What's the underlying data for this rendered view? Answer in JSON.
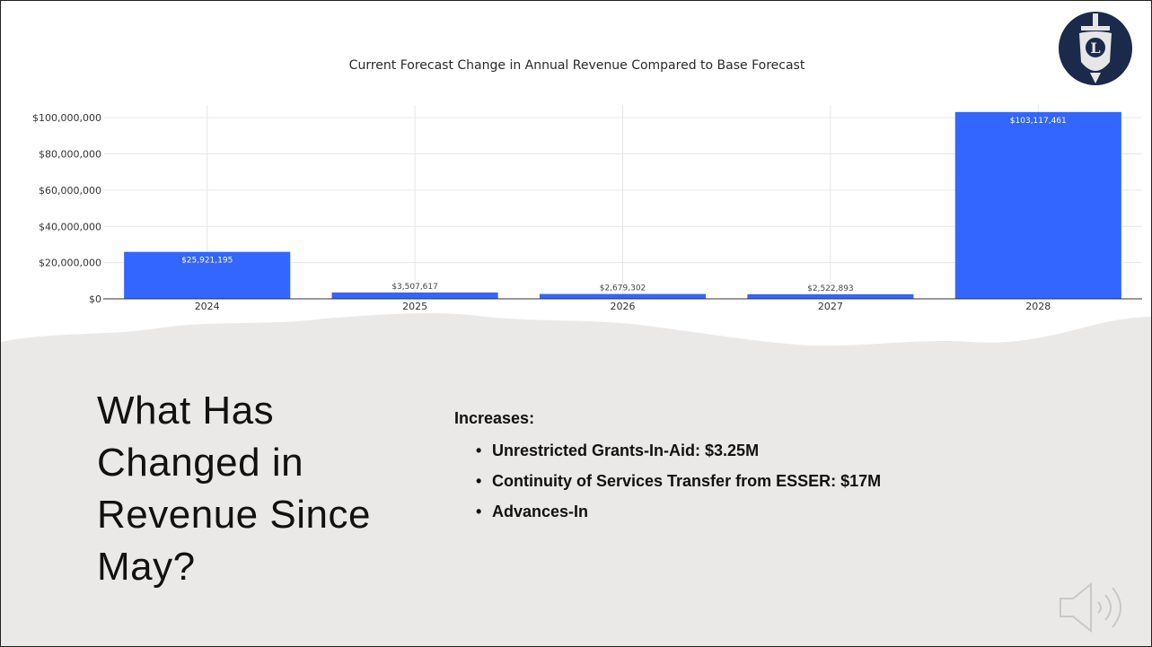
{
  "colors": {
    "bar": "#3366ff",
    "grid": "#e6e6e6",
    "axis": "#333333",
    "lower_panel": "#ebe9e7",
    "logo_bg": "#1b2a4a"
  },
  "chart_data": {
    "type": "bar",
    "title": "Current Forecast Change in Annual Revenue Compared to Base Forecast",
    "categories": [
      "2024",
      "2025",
      "2026",
      "2027",
      "2028"
    ],
    "values": [
      25921195,
      3507617,
      2679302,
      2522893,
      103117461
    ],
    "data_labels": [
      "$25,921,195",
      "$3,507,617",
      "$2,679,302",
      "$2,522,893",
      "$103,117,461"
    ],
    "y_ticks": [
      0,
      20000000,
      40000000,
      60000000,
      80000000,
      100000000
    ],
    "y_tick_labels": [
      "$0",
      "$20,000,000",
      "$40,000,000",
      "$60,000,000",
      "$80,000,000",
      "$100,000,000"
    ],
    "ylim": [
      0,
      107000000
    ],
    "grid": true,
    "xlabel": "",
    "ylabel": ""
  },
  "slide": {
    "title": "What Has Changed in Revenue Since May?",
    "heading": "Increases:",
    "bullets": [
      "Unrestricted Grants-In-Aid: $3.25M",
      "Continuity of Services Transfer from ESSER: $17M",
      "Advances-In"
    ],
    "logo_letter": "L"
  },
  "icons": {
    "logo": "shield-sword-logo-icon",
    "audio": "speaker-icon"
  }
}
